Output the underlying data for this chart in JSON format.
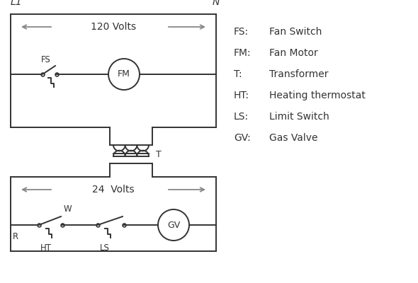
{
  "bg_color": "#ffffff",
  "line_color": "#333333",
  "arrow_color": "#888888",
  "legend": [
    [
      "FS:",
      "Fan Switch"
    ],
    [
      "FM:",
      "Fan Motor"
    ],
    [
      "T:",
      "Transformer"
    ],
    [
      "HT:",
      "Heating thermostat"
    ],
    [
      "LS:",
      "Limit Switch"
    ],
    [
      "GV:",
      "Gas Valve"
    ]
  ],
  "L1_label": "L1",
  "N_label": "N",
  "volts_120": "120 Volts",
  "volts_24": "24  Volts",
  "T_label": "T",
  "R_label": "R",
  "W_label": "W",
  "HT_label": "HT",
  "LS_label": "LS",
  "FS_label": "FS",
  "FM_label": "FM",
  "GV_label": "GV"
}
